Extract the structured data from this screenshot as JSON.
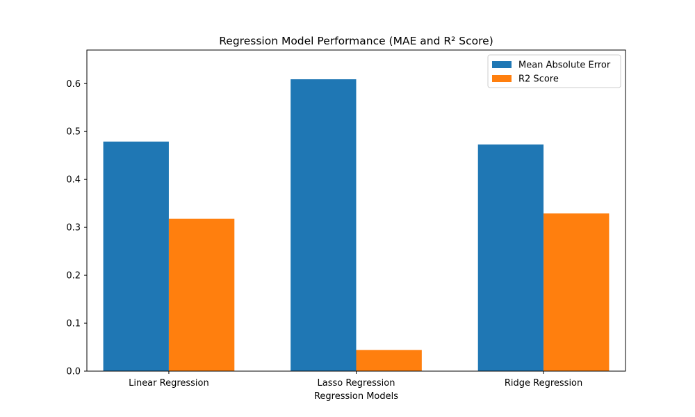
{
  "chart_data": {
    "type": "bar",
    "title": "Regression Model Performance (MAE and R² Score)",
    "xlabel": "Regression Models",
    "ylabel": "",
    "categories": [
      "Linear Regression",
      "Lasso Regression",
      "Ridge Regression"
    ],
    "series": [
      {
        "name": "Mean Absolute Error",
        "values": [
          0.479,
          0.609,
          0.473
        ],
        "color": "#1f77b4"
      },
      {
        "name": "R2 Score",
        "values": [
          0.318,
          0.044,
          0.329
        ],
        "color": "#ff7f0e"
      }
    ],
    "ylim": [
      0,
      0.67
    ],
    "yticks": [
      "0.0",
      "0.1",
      "0.2",
      "0.3",
      "0.4",
      "0.5",
      "0.6"
    ],
    "grid": false,
    "legend_position": "top-right"
  }
}
